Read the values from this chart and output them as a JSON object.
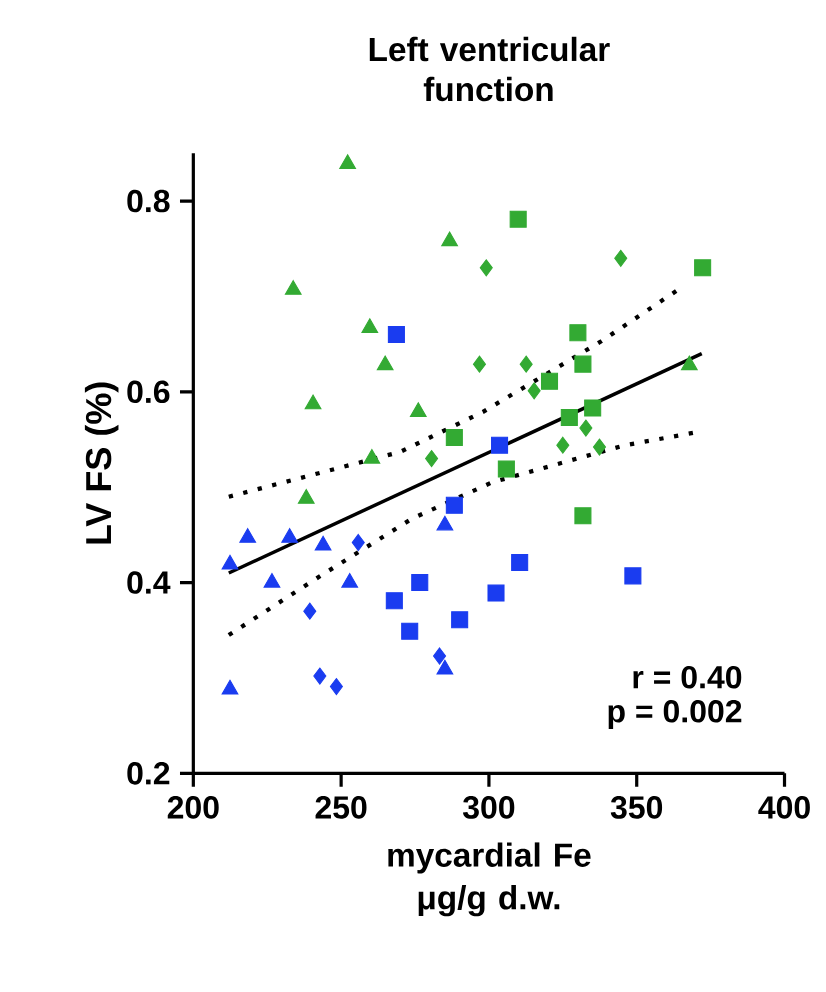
{
  "chart_data": {
    "type": "scatter",
    "title": "Left ventricular function",
    "xlabel": "mycardial Fe μg/g d.w.",
    "ylabel": "LV FS (%)",
    "xlim": [
      200,
      400
    ],
    "xticks": [
      200,
      250,
      300,
      350,
      400
    ],
    "ylim": [
      0.2,
      0.85
    ],
    "yticks": [
      0.2,
      0.4,
      0.6,
      0.8
    ],
    "series": [
      {
        "color": "#33aa33",
        "marker": "triangle",
        "x": [
          252.2,
          286.7,
          233.8,
          259.7,
          264.9,
          240.5,
          276.1,
          260.4,
          238.2,
          367.8
        ],
        "values": [
          0.839,
          0.758,
          0.707,
          0.667,
          0.628,
          0.587,
          0.579,
          0.53,
          0.488,
          0.628
        ]
      },
      {
        "color": "#33aa33",
        "marker": "diamond",
        "x": [
          299.1,
          296.8,
          312.6,
          344.6,
          315.3,
          325,
          332.8,
          337.4,
          280.6
        ],
        "values": [
          0.73,
          0.629,
          0.629,
          0.74,
          0.601,
          0.544,
          0.562,
          0.542,
          0.53
        ]
      },
      {
        "color": "#33aa33",
        "marker": "square",
        "x": [
          309.9,
          372.3,
          330.1,
          331.8,
          320.5,
          335.1,
          327.2,
          288.3,
          305.9,
          331.8
        ],
        "values": [
          0.781,
          0.73,
          0.662,
          0.629,
          0.611,
          0.583,
          0.573,
          0.552,
          0.519,
          0.47
        ]
      },
      {
        "color": "#1a3cf0",
        "marker": "triangle",
        "x": [
          218.4,
          232.6,
          212.4,
          243.9,
          226.6,
          252.9,
          212.4,
          285.1,
          285.1
        ],
        "values": [
          0.447,
          0.447,
          0.419,
          0.439,
          0.4,
          0.4,
          0.288,
          0.46,
          0.309
        ]
      },
      {
        "color": "#1a3cf0",
        "marker": "diamond",
        "x": [
          255.8,
          239.4,
          242.8,
          248.4,
          283.3
        ],
        "values": [
          0.442,
          0.37,
          0.302,
          0.291,
          0.323
        ]
      },
      {
        "color": "#1a3cf0",
        "marker": "square",
        "x": [
          268.7,
          303.6,
          288.3,
          276.6,
          268,
          273.2,
          290.1,
          302.4,
          310.4,
          348.7
        ],
        "values": [
          0.66,
          0.544,
          0.481,
          0.4,
          0.381,
          0.349,
          0.361,
          0.389,
          0.421,
          0.407
        ]
      },
      {
        "type": "line",
        "color": "#000000",
        "marker": "none",
        "line_style": "solid",
        "x": [
          212,
          372
        ],
        "values": [
          0.41,
          0.64
        ]
      },
      {
        "type": "line",
        "color": "#000000",
        "marker": "none",
        "line_style": "dotted",
        "x": [
          212,
          270,
          298,
          338,
          364
        ],
        "values": [
          0.49,
          0.537,
          0.579,
          0.653,
          0.707
        ]
      },
      {
        "type": "line",
        "color": "#000000",
        "marker": "none",
        "line_style": "dotted",
        "x": [
          212,
          243,
          274,
          301,
          346,
          371
        ],
        "values": [
          0.345,
          0.407,
          0.467,
          0.505,
          0.544,
          0.558
        ]
      }
    ],
    "annotations": [
      "r = 0.40",
      "p = 0.002"
    ]
  }
}
